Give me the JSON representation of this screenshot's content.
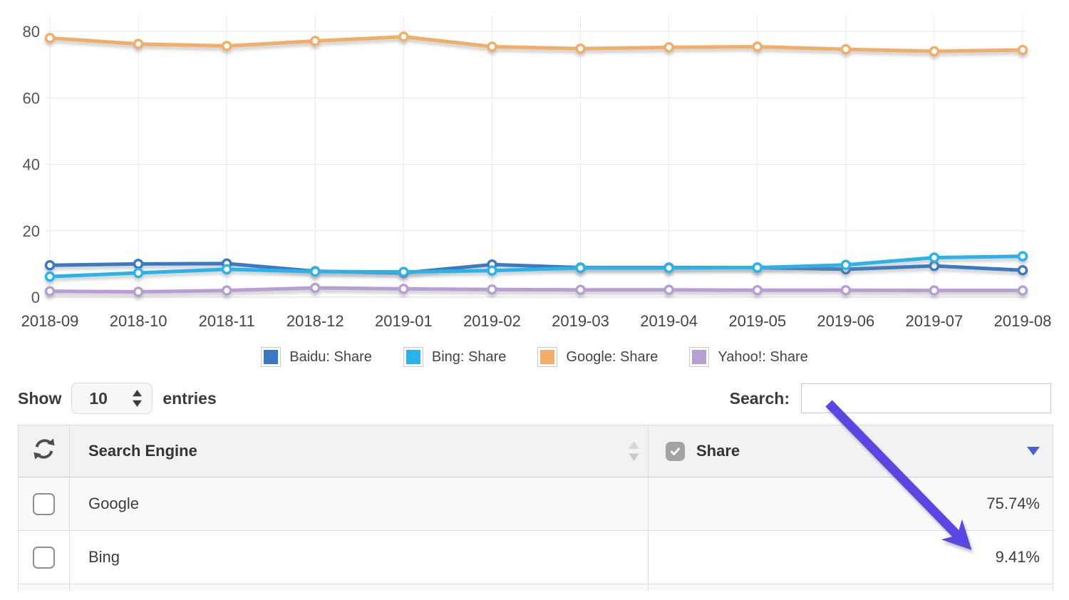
{
  "chart_data": {
    "type": "line",
    "x": [
      "2018-09",
      "2018-10",
      "2018-11",
      "2018-12",
      "2019-01",
      "2019-02",
      "2019-03",
      "2019-04",
      "2019-05",
      "2019-06",
      "2019-07",
      "2019-08"
    ],
    "series": [
      {
        "name": "Baidu: Share",
        "color": "#3a79c0",
        "values": [
          9.6,
          10.0,
          10.1,
          7.8,
          7.3,
          9.8,
          8.9,
          8.9,
          8.9,
          8.4,
          9.4,
          8.1
        ]
      },
      {
        "name": "Bing: Share",
        "color": "#2ab3ea",
        "values": [
          6.2,
          7.3,
          8.4,
          7.7,
          7.6,
          8.0,
          8.8,
          8.8,
          8.9,
          9.7,
          11.9,
          12.3
        ]
      },
      {
        "name": "Google: Share",
        "color": "#f2ad68",
        "values": [
          78.0,
          76.2,
          75.6,
          77.1,
          78.4,
          75.4,
          74.8,
          75.2,
          75.4,
          74.6,
          74.0,
          74.4
        ]
      },
      {
        "name": "Yahoo!: Share",
        "color": "#b79fd6",
        "values": [
          1.8,
          1.6,
          2.0,
          2.8,
          2.5,
          2.3,
          2.2,
          2.2,
          2.1,
          2.1,
          2.0,
          2.0
        ]
      }
    ],
    "yticks": [
      0,
      20,
      40,
      60,
      80
    ],
    "ylim": [
      0,
      80
    ],
    "grid": true,
    "legend_position": "bottom",
    "title": ""
  },
  "controls": {
    "show_label": "Show",
    "page_size": "10",
    "entries_label": "entries",
    "search_label": "Search:",
    "search_value": ""
  },
  "table": {
    "columns": [
      {
        "label": "Search Engine",
        "sort": "none"
      },
      {
        "label": "Share",
        "sort": "desc"
      }
    ],
    "header_checkbox_checked": true,
    "rows": [
      {
        "engine": "Google",
        "share": "75.74%",
        "checked": false
      },
      {
        "engine": "Bing",
        "share": "9.41%",
        "checked": false
      }
    ]
  },
  "icons": {
    "refresh": "circular-refresh-arrows",
    "page_size_stepper": "up-down-stepper",
    "sort_neutral": "up-down-triangles",
    "sort_desc": "down-triangle",
    "header_checkbox": "checked-checkbox",
    "row_checkbox": "unchecked-checkbox",
    "annotation_arrow": "diagonal-arrow-to-bing-share"
  },
  "colors": {
    "annotation_arrow": "#5847e0",
    "sort_desc_triangle": "#4f5ed0",
    "header_bg": "#f2f2f2",
    "row_alt_bg": "#f9f9f9",
    "grid_line": "#e8e8e8",
    "axis_text": "#555555"
  }
}
